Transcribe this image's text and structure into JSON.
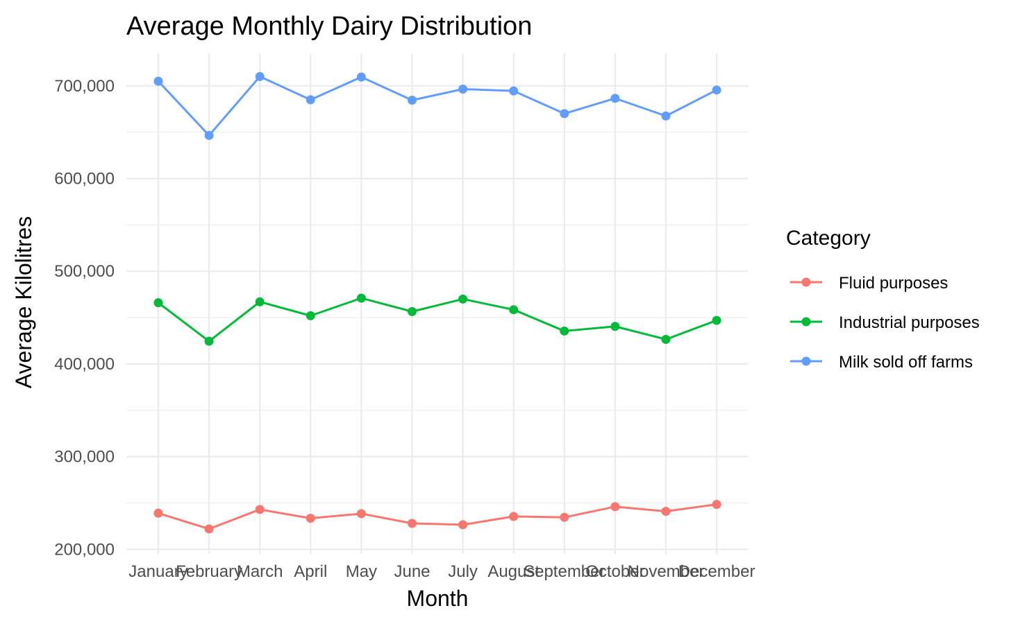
{
  "chart_data": {
    "type": "line",
    "title": "Average Monthly Dairy Distribution",
    "xlabel": "Month",
    "ylabel": "Average Kilolitres",
    "categories": [
      "January",
      "February",
      "March",
      "April",
      "May",
      "June",
      "July",
      "August",
      "September",
      "October",
      "November",
      "December"
    ],
    "ylim": [
      195000,
      735000
    ],
    "yticks": [
      200000,
      300000,
      400000,
      500000,
      600000,
      700000
    ],
    "ytick_labels": [
      "200,000",
      "300,000",
      "400,000",
      "500,000",
      "600,000",
      "700,000"
    ],
    "grid": true,
    "legend": {
      "title": "Category",
      "position": "right"
    },
    "series": [
      {
        "name": "Fluid purposes",
        "color": "#F8766D",
        "values": [
          239000,
          222000,
          243000,
          233500,
          238500,
          228000,
          226500,
          235500,
          234500,
          246000,
          241000,
          248500
        ]
      },
      {
        "name": "Industrial purposes",
        "color": "#00BA38",
        "values": [
          466000,
          424500,
          467000,
          452000,
          471000,
          456500,
          470000,
          458500,
          435500,
          440500,
          426500,
          447000
        ]
      },
      {
        "name": "Milk sold off farms",
        "color": "#619CFF",
        "values": [
          705000,
          646500,
          710000,
          685000,
          709500,
          684500,
          696500,
          694500,
          670000,
          686500,
          667500,
          695500
        ]
      }
    ]
  }
}
